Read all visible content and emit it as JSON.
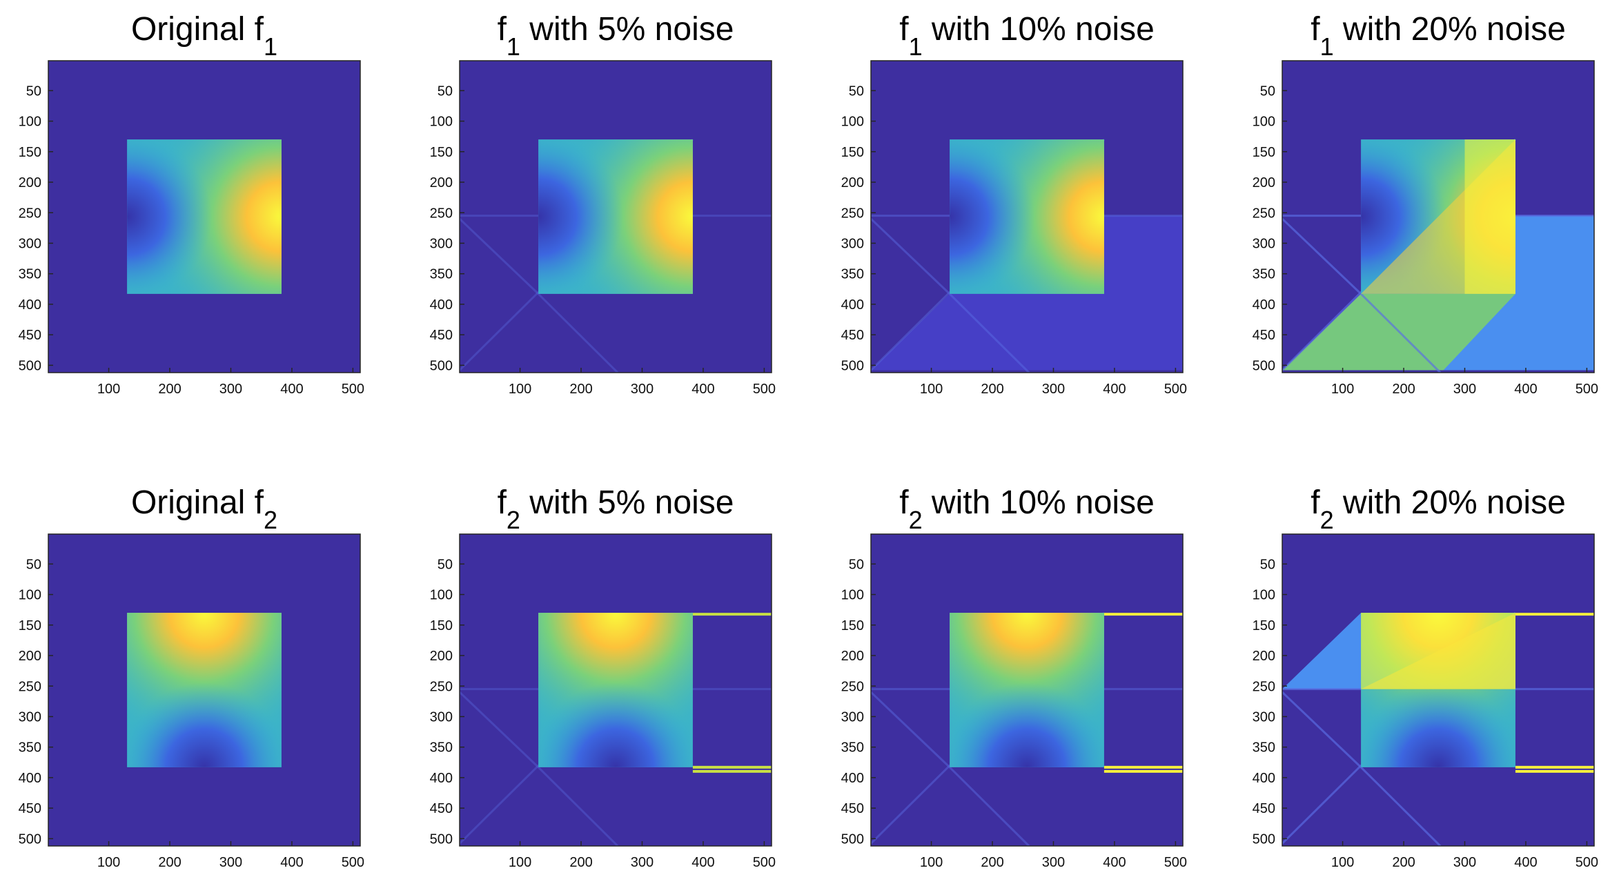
{
  "chart_data": [
    {
      "type": "heatmap",
      "title": {
        "prefix": "Original f",
        "sub": "1",
        "suffix": ""
      },
      "xlim": [
        1,
        512
      ],
      "ylim": [
        512,
        1
      ],
      "xticks": [
        100,
        200,
        300,
        400,
        500
      ],
      "yticks": [
        50,
        100,
        150,
        200,
        250,
        300,
        350,
        400,
        450,
        500
      ],
      "square": [
        130,
        383
      ],
      "function": "f1",
      "noise_pct": 0
    },
    {
      "type": "heatmap",
      "title": {
        "prefix": "f",
        "sub": "1",
        "suffix": " with 5% noise"
      },
      "xlim": [
        1,
        512
      ],
      "ylim": [
        512,
        1
      ],
      "xticks": [
        100,
        200,
        300,
        400,
        500
      ],
      "yticks": [
        50,
        100,
        150,
        200,
        250,
        300,
        350,
        400,
        450,
        500
      ],
      "square": [
        130,
        383
      ],
      "function": "f1",
      "noise_pct": 5
    },
    {
      "type": "heatmap",
      "title": {
        "prefix": "f",
        "sub": "1",
        "suffix": " with 10% noise"
      },
      "xlim": [
        1,
        512
      ],
      "ylim": [
        512,
        1
      ],
      "xticks": [
        100,
        200,
        300,
        400,
        500
      ],
      "yticks": [
        50,
        100,
        150,
        200,
        250,
        300,
        350,
        400,
        450,
        500
      ],
      "square": [
        130,
        383
      ],
      "function": "f1",
      "noise_pct": 10
    },
    {
      "type": "heatmap",
      "title": {
        "prefix": "f",
        "sub": "1",
        "suffix": " with 20% noise"
      },
      "xlim": [
        1,
        512
      ],
      "ylim": [
        512,
        1
      ],
      "xticks": [
        100,
        200,
        300,
        400,
        500
      ],
      "yticks": [
        50,
        100,
        150,
        200,
        250,
        300,
        350,
        400,
        450,
        500
      ],
      "square": [
        130,
        383
      ],
      "function": "f1",
      "noise_pct": 20
    },
    {
      "type": "heatmap",
      "title": {
        "prefix": "Original f",
        "sub": "2",
        "suffix": ""
      },
      "xlim": [
        1,
        512
      ],
      "ylim": [
        512,
        1
      ],
      "xticks": [
        100,
        200,
        300,
        400,
        500
      ],
      "yticks": [
        50,
        100,
        150,
        200,
        250,
        300,
        350,
        400,
        450,
        500
      ],
      "square": [
        130,
        383
      ],
      "function": "f2",
      "noise_pct": 0
    },
    {
      "type": "heatmap",
      "title": {
        "prefix": "f",
        "sub": "2",
        "suffix": " with 5% noise"
      },
      "xlim": [
        1,
        512
      ],
      "ylim": [
        512,
        1
      ],
      "xticks": [
        100,
        200,
        300,
        400,
        500
      ],
      "yticks": [
        50,
        100,
        150,
        200,
        250,
        300,
        350,
        400,
        450,
        500
      ],
      "square": [
        130,
        383
      ],
      "function": "f2",
      "noise_pct": 5
    },
    {
      "type": "heatmap",
      "title": {
        "prefix": "f",
        "sub": "2",
        "suffix": " with 10% noise"
      },
      "xlim": [
        1,
        512
      ],
      "ylim": [
        512,
        1
      ],
      "xticks": [
        100,
        200,
        300,
        400,
        500
      ],
      "yticks": [
        50,
        100,
        150,
        200,
        250,
        300,
        350,
        400,
        450,
        500
      ],
      "square": [
        130,
        383
      ],
      "function": "f2",
      "noise_pct": 10
    },
    {
      "type": "heatmap",
      "title": {
        "prefix": "f",
        "sub": "2",
        "suffix": " with 20% noise"
      },
      "xlim": [
        1,
        512
      ],
      "ylim": [
        512,
        1
      ],
      "xticks": [
        100,
        200,
        300,
        400,
        500
      ],
      "yticks": [
        50,
        100,
        150,
        200,
        250,
        300,
        350,
        400,
        450,
        500
      ],
      "square": [
        130,
        383
      ],
      "function": "f2",
      "noise_pct": 20
    }
  ],
  "colormap": {
    "name": "parula",
    "background": "#3e2fa0",
    "low": "#3533a8",
    "mid": "#3da8d8",
    "high": "#f9fa3c"
  }
}
